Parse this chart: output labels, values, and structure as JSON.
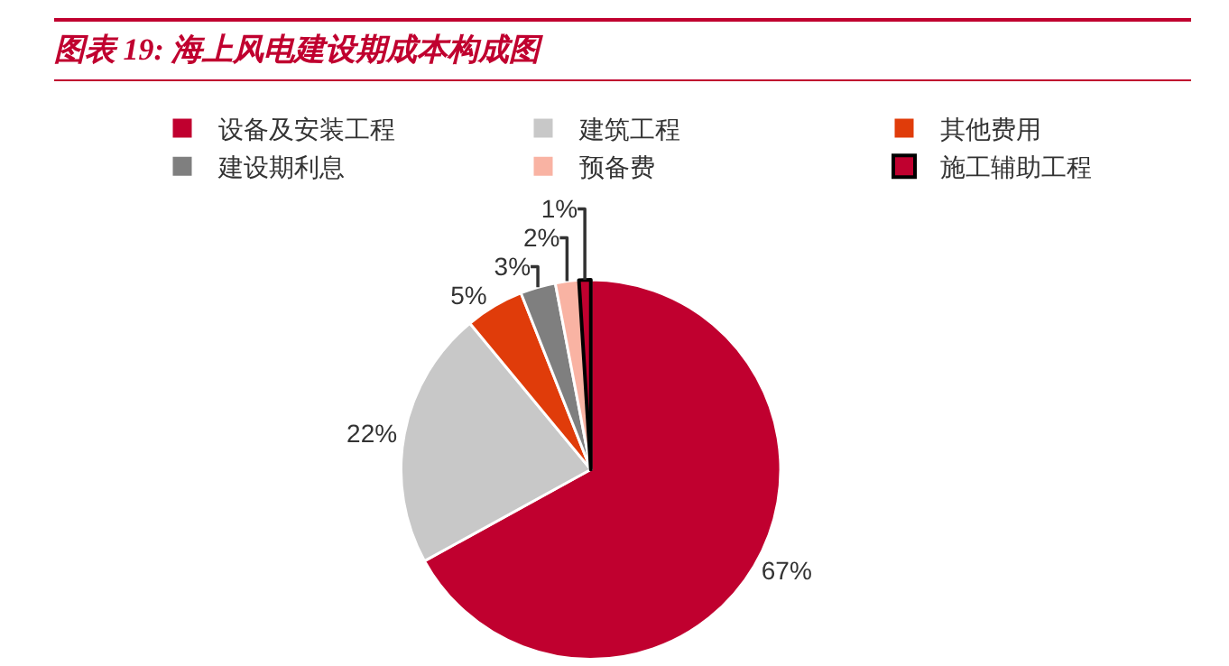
{
  "chart_data": {
    "type": "pie",
    "title": "图表 19: 海上风电建设期成本构成图",
    "categories": [
      "设备及安装工程",
      "建筑工程",
      "其他费用",
      "建设期利息",
      "预备费",
      "施工辅助工程"
    ],
    "values": [
      67,
      22,
      5,
      3,
      2,
      1
    ],
    "value_labels": [
      "67%",
      "22%",
      "5%",
      "3%",
      "2%",
      "1%"
    ],
    "colors": [
      "#c0002f",
      "#c8c8c8",
      "#e03c0a",
      "#7f7f7f",
      "#f9b3a3",
      "#c0002f"
    ],
    "legend": "top"
  }
}
